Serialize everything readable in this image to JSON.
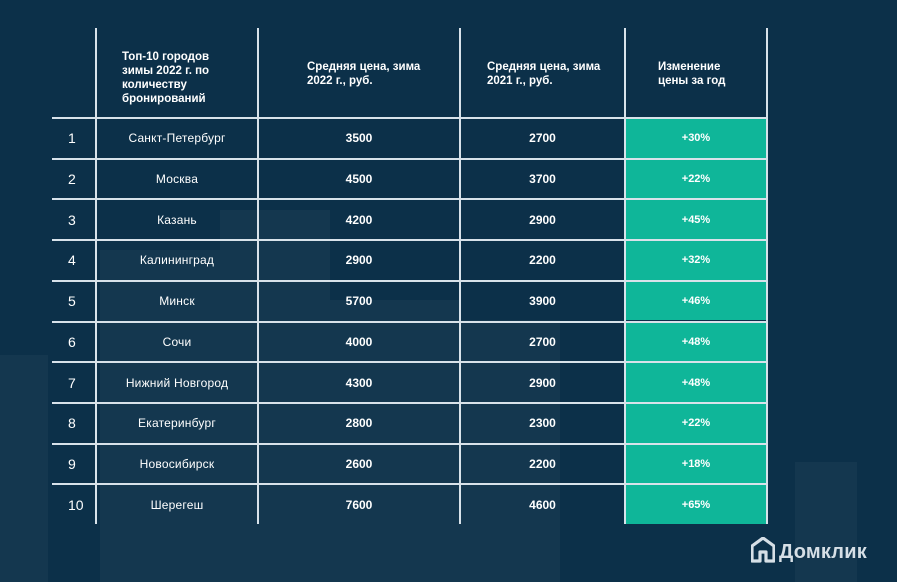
{
  "table": {
    "headers": {
      "city": "Топ-10 городов зимы 2022 г. по количеству бронирований",
      "price_2022": "Средняя цена, зима 2022 г., руб.",
      "price_2021": "Средняя цена, зима 2021 г., руб.",
      "change": "Изменение цены за год"
    },
    "rows": [
      {
        "rank": "1",
        "city": "Санкт-Петербург",
        "price_2022": "3500",
        "price_2021": "2700",
        "change": "+30%"
      },
      {
        "rank": "2",
        "city": "Москва",
        "price_2022": "4500",
        "price_2021": "3700",
        "change": "+22%"
      },
      {
        "rank": "3",
        "city": "Казань",
        "price_2022": "4200",
        "price_2021": "2900",
        "change": "+45%"
      },
      {
        "rank": "4",
        "city": "Калининград",
        "price_2022": "2900",
        "price_2021": "2200",
        "change": "+32%"
      },
      {
        "rank": "5",
        "city": "Минск",
        "price_2022": "5700",
        "price_2021": "3900",
        "change": "+46%"
      },
      {
        "rank": "6",
        "city": "Сочи",
        "price_2022": "4000",
        "price_2021": "2700",
        "change": "+48%"
      },
      {
        "rank": "7",
        "city": "Нижний Новгород",
        "price_2022": "4300",
        "price_2021": "2900",
        "change": "+48%"
      },
      {
        "rank": "8",
        "city": "Екатеринбург",
        "price_2022": "2800",
        "price_2021": "2300",
        "change": "+22%"
      },
      {
        "rank": "9",
        "city": "Новосибирск",
        "price_2022": "2600",
        "price_2021": "2200",
        "change": "+18%"
      },
      {
        "rank": "10",
        "city": "Шерегеш",
        "price_2022": "7600",
        "price_2021": "4600",
        "change": "+65%"
      }
    ]
  },
  "brand": {
    "name": "Домклик",
    "icon": "house-icon"
  },
  "colors": {
    "background": "#0c3049",
    "accent": "#0fb699",
    "lines": "#d8e2ea"
  }
}
